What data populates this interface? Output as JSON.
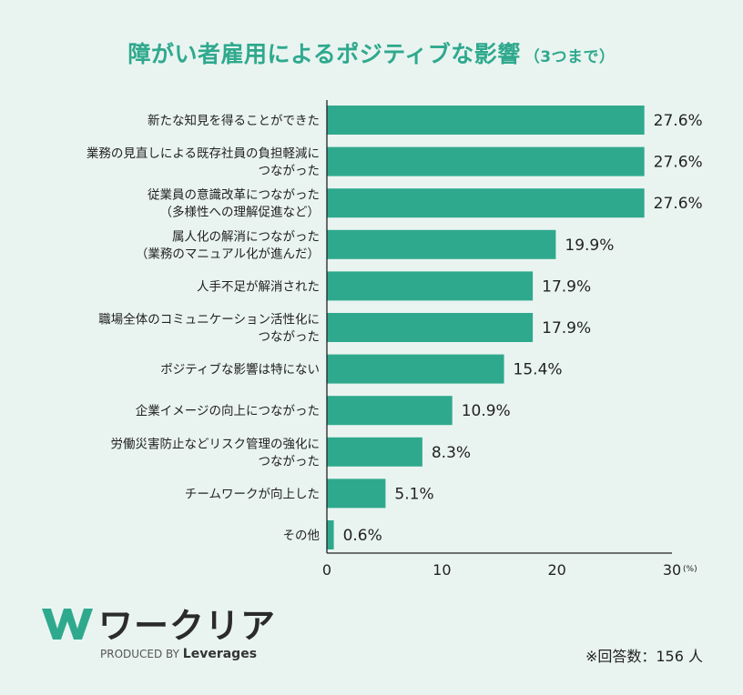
{
  "title": "障がい者雇用によるポジティブな影響",
  "title_note": "（3つまで）",
  "chart_data": {
    "type": "bar",
    "orientation": "horizontal",
    "categories": [
      [
        "新たな知見を得ることができた"
      ],
      [
        "業務の見直しによる既存社員の負担軽減に",
        "つながった"
      ],
      [
        "従業員の意識改革につながった",
        "（多様性への理解促進など）"
      ],
      [
        "属人化の解消につながった",
        "（業務のマニュアル化が進んだ）"
      ],
      [
        "人手不足が解消された"
      ],
      [
        "職場全体のコミュニケーション活性化に",
        "つながった"
      ],
      [
        "ポジティブな影響は特にない"
      ],
      [
        "企業イメージの向上につながった"
      ],
      [
        "労働災害防止などリスク管理の強化に",
        "つながった"
      ],
      [
        "チームワークが向上した"
      ],
      [
        "その他"
      ]
    ],
    "values": [
      27.6,
      27.6,
      27.6,
      19.9,
      17.9,
      17.9,
      15.4,
      10.9,
      8.3,
      5.1,
      0.6
    ],
    "value_labels": [
      "27.6%",
      "27.6%",
      "27.6%",
      "19.9%",
      "17.9%",
      "17.9%",
      "15.4%",
      "10.9%",
      "8.3%",
      "5.1%",
      "0.6%"
    ],
    "xlim": [
      0,
      30
    ],
    "xticks": [
      "0",
      "10",
      "20",
      "30"
    ],
    "x_unit": "(%)",
    "bar_color": "#2fa98d",
    "grid": false
  },
  "logo": {
    "name": "ワークリア",
    "produced_by": "PRODUCED BY",
    "brand": "Leverages",
    "color": "#2fa98d"
  },
  "respondents": "※回答数：156 人"
}
